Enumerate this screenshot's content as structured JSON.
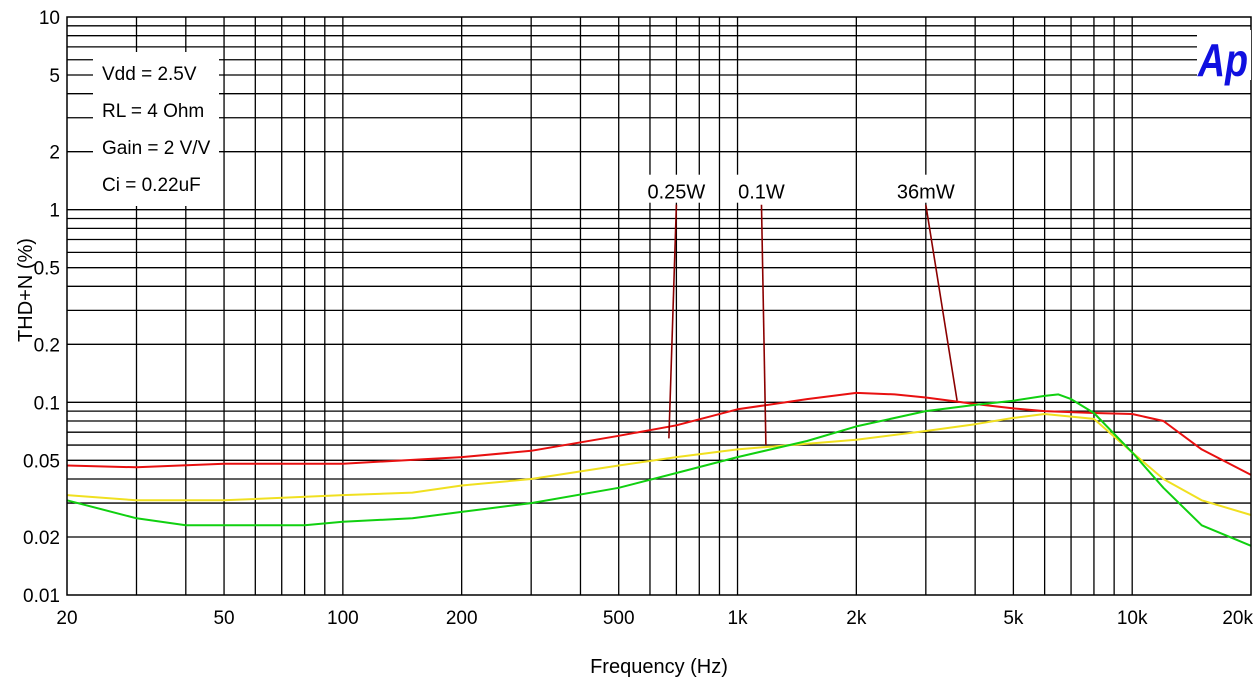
{
  "chart_data": {
    "type": "line",
    "xlabel": "Frequency (Hz)",
    "ylabel": "THD+N (%)",
    "xscale": "log",
    "yscale": "log",
    "xlim": [
      20,
      20000
    ],
    "ylim": [
      0.01,
      10
    ],
    "grid": true,
    "x_ticks": [
      {
        "v": 20,
        "label": "20"
      },
      {
        "v": 50,
        "label": "50"
      },
      {
        "v": 100,
        "label": "100"
      },
      {
        "v": 200,
        "label": "200"
      },
      {
        "v": 500,
        "label": "500"
      },
      {
        "v": 1000,
        "label": "1k"
      },
      {
        "v": 2000,
        "label": "2k"
      },
      {
        "v": 5000,
        "label": "5k"
      },
      {
        "v": 10000,
        "label": "10k"
      },
      {
        "v": 20000,
        "label": "20k"
      }
    ],
    "y_ticks": [
      {
        "v": 10,
        "label": "10"
      },
      {
        "v": 5,
        "label": "5"
      },
      {
        "v": 2,
        "label": "2"
      },
      {
        "v": 1,
        "label": "1"
      },
      {
        "v": 0.5,
        "label": "0.5"
      },
      {
        "v": 0.2,
        "label": "0.2"
      },
      {
        "v": 0.1,
        "label": "0.1"
      },
      {
        "v": 0.05,
        "label": "0.05"
      },
      {
        "v": 0.02,
        "label": "0.02"
      },
      {
        "v": 0.01,
        "label": "0.01"
      }
    ],
    "conditions": [
      "Vdd = 2.5V",
      "RL = 4 Ohm",
      "Gain = 2 V/V",
      "Ci = 0.22uF"
    ],
    "logo": "Ap",
    "series": [
      {
        "color": "#e81010",
        "points": [
          [
            20,
            0.047
          ],
          [
            30,
            0.046
          ],
          [
            50,
            0.048
          ],
          [
            100,
            0.048
          ],
          [
            200,
            0.052
          ],
          [
            300,
            0.056
          ],
          [
            500,
            0.067
          ],
          [
            700,
            0.076
          ],
          [
            1000,
            0.092
          ],
          [
            1500,
            0.104
          ],
          [
            2000,
            0.112
          ],
          [
            2500,
            0.11
          ],
          [
            3000,
            0.106
          ],
          [
            4000,
            0.098
          ],
          [
            5000,
            0.093
          ],
          [
            6000,
            0.09
          ],
          [
            7000,
            0.089
          ],
          [
            8000,
            0.088
          ],
          [
            10000,
            0.087
          ],
          [
            12000,
            0.08
          ],
          [
            15000,
            0.057
          ],
          [
            20000,
            0.042
          ]
        ]
      },
      {
        "color": "#f0e020",
        "points": [
          [
            20,
            0.033
          ],
          [
            30,
            0.031
          ],
          [
            50,
            0.031
          ],
          [
            100,
            0.033
          ],
          [
            150,
            0.034
          ],
          [
            200,
            0.037
          ],
          [
            300,
            0.04
          ],
          [
            500,
            0.047
          ],
          [
            700,
            0.052
          ],
          [
            1000,
            0.057
          ],
          [
            1500,
            0.061
          ],
          [
            2000,
            0.064
          ],
          [
            3000,
            0.071
          ],
          [
            4000,
            0.077
          ],
          [
            5000,
            0.083
          ],
          [
            6000,
            0.087
          ],
          [
            8000,
            0.082
          ],
          [
            10000,
            0.055
          ],
          [
            12000,
            0.04
          ],
          [
            15000,
            0.031
          ],
          [
            20000,
            0.026
          ]
        ]
      },
      {
        "color": "#10d010",
        "points": [
          [
            20,
            0.031
          ],
          [
            30,
            0.025
          ],
          [
            40,
            0.023
          ],
          [
            60,
            0.023
          ],
          [
            80,
            0.023
          ],
          [
            100,
            0.024
          ],
          [
            150,
            0.025
          ],
          [
            200,
            0.027
          ],
          [
            300,
            0.03
          ],
          [
            500,
            0.036
          ],
          [
            700,
            0.043
          ],
          [
            1000,
            0.052
          ],
          [
            1500,
            0.063
          ],
          [
            2000,
            0.075
          ],
          [
            3000,
            0.09
          ],
          [
            4000,
            0.097
          ],
          [
            5000,
            0.102
          ],
          [
            6000,
            0.108
          ],
          [
            6500,
            0.11
          ],
          [
            7000,
            0.104
          ],
          [
            8000,
            0.088
          ],
          [
            10000,
            0.055
          ],
          [
            12000,
            0.036
          ],
          [
            15000,
            0.023
          ],
          [
            20000,
            0.018
          ]
        ]
      }
    ],
    "annotations": [
      {
        "text": "0.25W",
        "text_x": 700,
        "text_y": 1.14,
        "tip_x": 670,
        "tip_y": 0.065
      },
      {
        "text": "0.1W",
        "text_x": 1150,
        "text_y": 1.14,
        "tip_x": 1180,
        "tip_y": 0.06
      },
      {
        "text": "36mW",
        "text_x": 3000,
        "text_y": 1.14,
        "tip_x": 3600,
        "tip_y": 0.102
      }
    ]
  }
}
